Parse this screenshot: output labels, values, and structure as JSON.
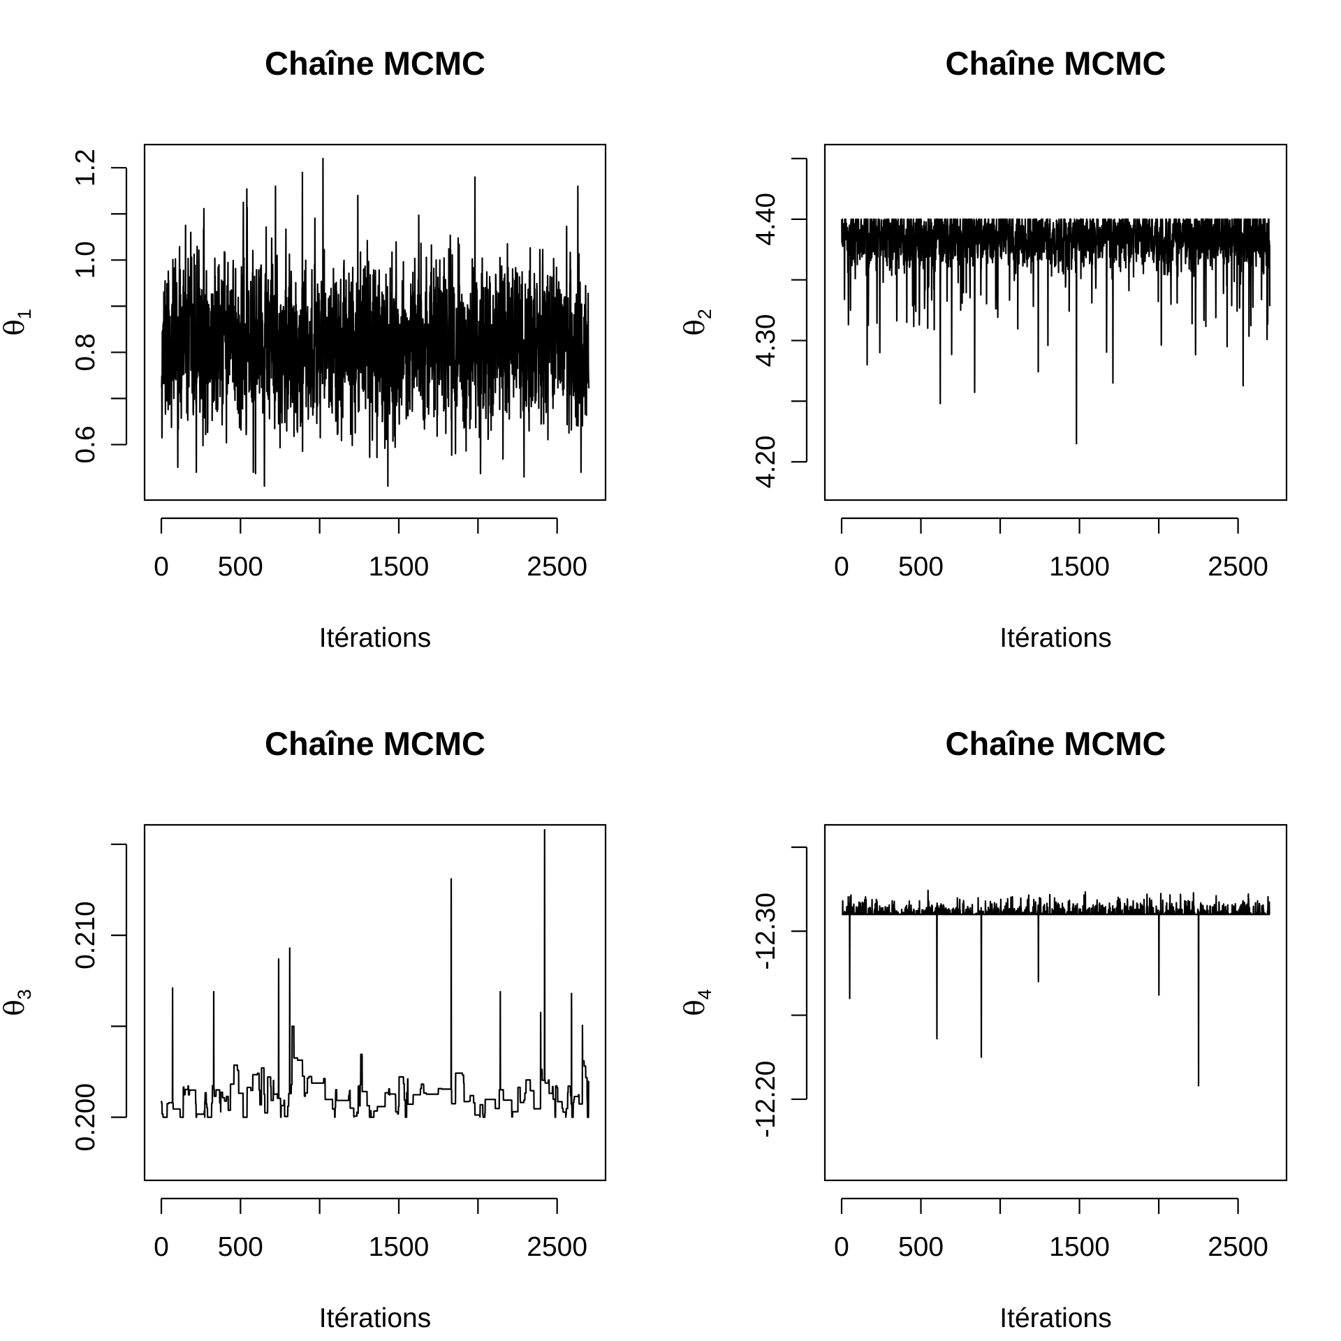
{
  "chart_data": [
    {
      "type": "line",
      "title": "Chaîne MCMC",
      "xlabel": "Itérations",
      "ylabel": {
        "symbol": "θ",
        "subscript": "1"
      },
      "xlim": [
        0,
        2700
      ],
      "ylim": [
        0.51,
        1.22
      ],
      "xticks": [
        0,
        500,
        1000,
        1500,
        2000,
        2500
      ],
      "xtick_labels": [
        "0",
        "500",
        "",
        "1500",
        "",
        "2500"
      ],
      "yticks": [
        0.6,
        0.7,
        0.8,
        0.9,
        1.0,
        1.1,
        1.2
      ],
      "ytick_labels": [
        "0.6",
        "",
        "0.8",
        "",
        "1.0",
        "",
        "1.2"
      ],
      "trace": {
        "n": 2700,
        "center": 0.82,
        "sd": 0.085,
        "ar": 0.25,
        "hold": 0.0,
        "lower": 0.51,
        "upper": 1.22,
        "seed": 11,
        "spikes": [
          {
            "x": 1020,
            "y": 1.22
          },
          {
            "x": 890,
            "y": 1.19
          },
          {
            "x": 1980,
            "y": 1.18
          },
          {
            "x": 2630,
            "y": 1.16
          },
          {
            "x": 720,
            "y": 1.16
          },
          {
            "x": 1240,
            "y": 1.14
          },
          {
            "x": 650,
            "y": 0.51
          },
          {
            "x": 1430,
            "y": 0.51
          },
          {
            "x": 220,
            "y": 0.54
          },
          {
            "x": 2290,
            "y": 0.53
          },
          {
            "x": 2650,
            "y": 0.54
          },
          {
            "x": 580,
            "y": 0.54
          }
        ]
      }
    },
    {
      "type": "line",
      "title": "Chaîne MCMC",
      "xlabel": "Itérations",
      "ylabel": {
        "symbol": "θ",
        "subscript": "2"
      },
      "xlim": [
        0,
        2700
      ],
      "ylim": [
        4.18,
        4.45
      ],
      "xticks": [
        0,
        500,
        1000,
        1500,
        2000,
        2500
      ],
      "xtick_labels": [
        "0",
        "500",
        "",
        "1500",
        "",
        "2500"
      ],
      "yticks": [
        4.2,
        4.25,
        4.3,
        4.35,
        4.4,
        4.45
      ],
      "ytick_labels": [
        "4.20",
        "",
        "4.30",
        "",
        "4.40",
        ""
      ],
      "trace": {
        "n": 2700,
        "center": 4.385,
        "sd": 0.012,
        "ar": 0.3,
        "hold": 0.0,
        "lower": 4.2,
        "upper": 4.4,
        "dips": 0.04,
        "dipdepth": 0.05,
        "seed": 23,
        "spikes": [
          {
            "x": 1480,
            "y": 4.215
          },
          {
            "x": 1710,
            "y": 4.265
          },
          {
            "x": 160,
            "y": 4.28
          },
          {
            "x": 240,
            "y": 4.29
          },
          {
            "x": 1300,
            "y": 4.296
          },
          {
            "x": 2430,
            "y": 4.295
          },
          {
            "x": 410,
            "y": 4.315
          },
          {
            "x": 750,
            "y": 4.325
          }
        ]
      }
    },
    {
      "type": "line",
      "title": "Chaîne MCMC",
      "xlabel": "Itérations",
      "ylabel": {
        "symbol": "θ",
        "subscript": "3"
      },
      "xlim": [
        0,
        2700
      ],
      "ylim": [
        0.1973,
        0.2153
      ],
      "xticks": [
        0,
        500,
        1000,
        1500,
        2000,
        2500
      ],
      "xtick_labels": [
        "0",
        "500",
        "",
        "1500",
        "",
        "2500"
      ],
      "yticks": [
        0.2,
        0.205,
        0.21,
        0.215
      ],
      "ytick_labels": [
        "0.200",
        "",
        "0.210",
        ""
      ],
      "trace": {
        "n": 2700,
        "center": 0.2009,
        "sd": 0.0007,
        "ar": 0.5,
        "hold": 0.93,
        "lower": 0.2,
        "upper": 0.214,
        "ups": 0.025,
        "updepth": 0.004,
        "seed": 37,
        "spikes": [
          {
            "x": 2420,
            "y": 0.2158
          },
          {
            "x": 1830,
            "y": 0.2131
          },
          {
            "x": 810,
            "y": 0.2093
          },
          {
            "x": 740,
            "y": 0.2087
          },
          {
            "x": 70,
            "y": 0.2071
          },
          {
            "x": 330,
            "y": 0.2069
          },
          {
            "x": 2140,
            "y": 0.2069
          },
          {
            "x": 2590,
            "y": 0.2068
          }
        ]
      }
    },
    {
      "type": "line",
      "title": "Chaîne MCMC",
      "xlabel": "Itérations",
      "ylabel": {
        "symbol": "θ",
        "subscript": "4"
      },
      "xlim": [
        0,
        2700
      ],
      "ylim": [
        -12.16,
        -12.355
      ],
      "xticks": [
        0,
        500,
        1000,
        1500,
        2000,
        2500
      ],
      "xtick_labels": [
        "0",
        "500",
        "",
        "1500",
        "",
        "2500"
      ],
      "yticks": [
        -12.2,
        -12.25,
        -12.3,
        -12.35
      ],
      "ytick_labels": [
        "-12.20",
        "",
        "-12.30",
        ""
      ],
      "trace": {
        "n": 2700,
        "center": -12.306,
        "sd": 0.005,
        "ar": 0.3,
        "hold": 0.0,
        "lower": -12.34,
        "upper": -12.31,
        "dips": 0.04,
        "dipdepth": 0.02,
        "seed": 53,
        "spikes": [
          {
            "x": 2250,
            "y": -12.208
          },
          {
            "x": 880,
            "y": -12.225
          },
          {
            "x": 600,
            "y": -12.236
          },
          {
            "x": 50,
            "y": -12.26
          },
          {
            "x": 2000,
            "y": -12.262
          },
          {
            "x": 1240,
            "y": -12.27
          }
        ]
      }
    }
  ]
}
